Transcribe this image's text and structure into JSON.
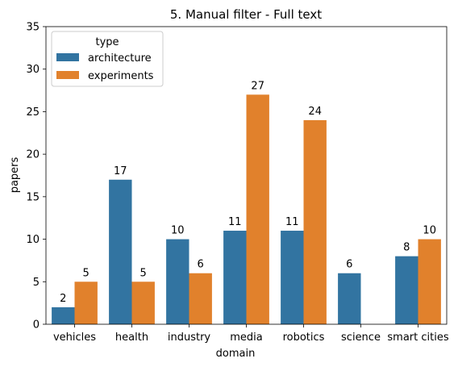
{
  "chart_data": {
    "type": "bar",
    "title": "5. Manual filter - Full text",
    "xlabel": "domain",
    "ylabel": "papers",
    "categories": [
      "vehicles",
      "health",
      "industry",
      "media",
      "robotics",
      "science",
      "smart cities"
    ],
    "series": [
      {
        "name": "architecture",
        "color": "#3274a1",
        "values": [
          2,
          17,
          10,
          11,
          11,
          6,
          8
        ]
      },
      {
        "name": "experiments",
        "color": "#e1812c",
        "values": [
          5,
          5,
          6,
          27,
          24,
          null,
          10
        ]
      }
    ],
    "ylim": [
      0,
      35
    ],
    "yticks": [
      0,
      5,
      10,
      15,
      20,
      25,
      30,
      35
    ],
    "grid": false,
    "legend": {
      "title": "type",
      "placement": "top-left"
    }
  }
}
